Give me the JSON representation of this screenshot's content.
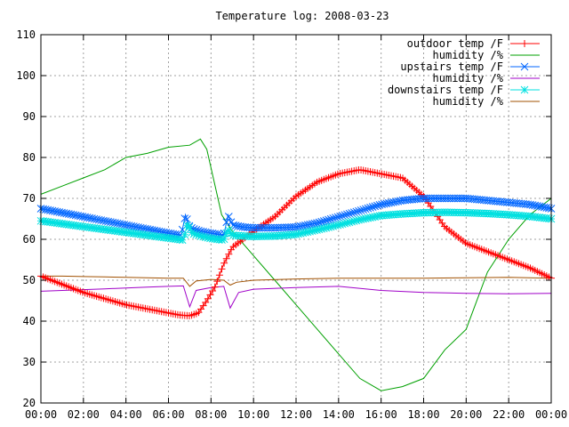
{
  "chart_data": {
    "type": "line",
    "title": "Temperature log: 2008-03-23",
    "xlabel": "",
    "ylabel": "",
    "xlim": [
      0,
      24
    ],
    "ylim": [
      20,
      110
    ],
    "grid": true,
    "legend_position": "top-right",
    "x_ticks": [
      {
        "value": 0,
        "label": "00:00"
      },
      {
        "value": 2,
        "label": "02:00"
      },
      {
        "value": 4,
        "label": "04:00"
      },
      {
        "value": 6,
        "label": "06:00"
      },
      {
        "value": 8,
        "label": "08:00"
      },
      {
        "value": 10,
        "label": "10:00"
      },
      {
        "value": 12,
        "label": "12:00"
      },
      {
        "value": 14,
        "label": "14:00"
      },
      {
        "value": 16,
        "label": "16:00"
      },
      {
        "value": 18,
        "label": "18:00"
      },
      {
        "value": 20,
        "label": "20:00"
      },
      {
        "value": 22,
        "label": "22:00"
      },
      {
        "value": 24,
        "label": "00:00"
      }
    ],
    "y_ticks": [
      {
        "value": 20,
        "label": "20"
      },
      {
        "value": 30,
        "label": "30"
      },
      {
        "value": 40,
        "label": "40"
      },
      {
        "value": 50,
        "label": "50"
      },
      {
        "value": 60,
        "label": "60"
      },
      {
        "value": 70,
        "label": "70"
      },
      {
        "value": 80,
        "label": "80"
      },
      {
        "value": 90,
        "label": "90"
      },
      {
        "value": 100,
        "label": "100"
      },
      {
        "value": 110,
        "label": "110"
      }
    ],
    "series": [
      {
        "name": "outdoor temp /F",
        "color": "#ff0000",
        "marker": "plus",
        "x": [
          0,
          1,
          2,
          3,
          4,
          5,
          6,
          6.5,
          7,
          7.4,
          7.8,
          8.2,
          8.6,
          9,
          10,
          11,
          12,
          13,
          14,
          15,
          16,
          17,
          18,
          19,
          20,
          21,
          22,
          23,
          24
        ],
        "y": [
          51,
          49,
          47,
          45.5,
          44,
          43,
          42,
          41.5,
          41.3,
          42,
          45,
          48.5,
          54,
          58,
          62,
          65.5,
          70.5,
          74,
          76,
          77,
          76,
          75,
          70.5,
          63,
          59,
          57,
          55,
          53,
          50.5
        ]
      },
      {
        "name": "humidity /%",
        "color": "#00a000",
        "marker": "none",
        "x": [
          0,
          1,
          2,
          3,
          4,
          5,
          6,
          7,
          7.5,
          7.8,
          8.5,
          9,
          10,
          11,
          12,
          13,
          14,
          15,
          16,
          17,
          18,
          19,
          20,
          21,
          22,
          23,
          24
        ],
        "y": [
          71,
          73,
          75,
          77,
          80,
          81,
          82.5,
          83,
          84.5,
          82,
          66,
          62,
          56,
          50,
          44,
          38,
          32,
          26,
          23,
          24,
          26,
          33,
          38,
          52,
          60,
          66,
          70
        ]
      },
      {
        "name": "upstairs temp /F",
        "color": "#0066ff",
        "marker": "cross",
        "x": [
          0,
          1,
          2,
          3,
          4,
          5,
          6,
          6.6,
          6.8,
          7,
          7.2,
          7.5,
          8,
          8.6,
          8.8,
          9,
          9.5,
          10,
          11,
          12,
          13,
          14,
          15,
          16,
          17,
          18,
          19,
          20,
          21,
          22,
          23,
          24
        ],
        "y": [
          67.5,
          66.5,
          65.5,
          64.5,
          63.5,
          62.5,
          61.5,
          61,
          66,
          63,
          62.5,
          62,
          61.5,
          61,
          66,
          63.5,
          63,
          62.8,
          62.8,
          63,
          64,
          65.5,
          67,
          68.5,
          69.5,
          70,
          70,
          70,
          69.5,
          69,
          68.5,
          67.5
        ]
      },
      {
        "name": "humidity /%",
        "color": "#a000c8",
        "marker": "none",
        "x": [
          0,
          1,
          2,
          3,
          4,
          5,
          6,
          6.7,
          7,
          7.3,
          8,
          8.6,
          8.9,
          9.3,
          10,
          12,
          14,
          16,
          18,
          20,
          22,
          24
        ],
        "y": [
          47.3,
          47.5,
          47.7,
          47.9,
          48.1,
          48.3,
          48.5,
          48.6,
          43.5,
          47.5,
          48.2,
          48.5,
          43.2,
          47,
          47.8,
          48.2,
          48.5,
          47.5,
          47,
          46.8,
          46.7,
          46.8
        ]
      },
      {
        "name": "downstairs temp /F",
        "color": "#00e0e0",
        "marker": "star",
        "x": [
          0,
          1,
          2,
          3,
          4,
          5,
          6,
          6.7,
          6.9,
          7.1,
          7.5,
          8,
          8.6,
          8.8,
          9,
          9.5,
          10,
          11,
          12,
          13,
          14,
          15,
          16,
          17,
          18,
          19,
          20,
          21,
          22,
          23,
          24
        ],
        "y": [
          64.5,
          63.8,
          63.1,
          62.4,
          61.7,
          61,
          60.3,
          59.8,
          64,
          61.5,
          60.8,
          60.2,
          59.8,
          62.5,
          61,
          60.8,
          60.7,
          60.8,
          61.2,
          62.3,
          63.5,
          64.8,
          65.8,
          66.2,
          66.5,
          66.6,
          66.5,
          66.3,
          66,
          65.6,
          65
        ]
      },
      {
        "name": "humidity /%",
        "color": "#a05000",
        "marker": "none",
        "x": [
          0,
          1,
          2,
          3,
          4,
          5,
          6,
          6.7,
          7,
          7.3,
          8,
          8.6,
          8.9,
          9.2,
          10,
          12,
          14,
          16,
          18,
          20,
          22,
          24
        ],
        "y": [
          51,
          51,
          50.9,
          50.8,
          50.7,
          50.6,
          50.5,
          50.5,
          48.5,
          49.8,
          50.2,
          50,
          48.8,
          49.5,
          50,
          50.3,
          50.5,
          50.5,
          50.5,
          50.6,
          50.7,
          50.5
        ]
      }
    ]
  }
}
